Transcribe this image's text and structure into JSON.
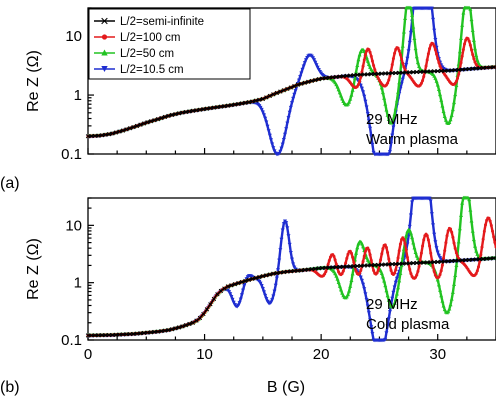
{
  "chart_data": [
    {
      "type": "line",
      "panel_label": "(a)",
      "ylabel": "Re Z (Ω)",
      "xlabel": "",
      "xlim": [
        0,
        35
      ],
      "ylim": [
        0.1,
        30
      ],
      "yscale": "log",
      "x_ticks": [
        0,
        10,
        20,
        30
      ],
      "y_ticks": [
        0.1,
        1,
        10
      ],
      "y_tick_labels": [
        "0.1",
        "1",
        "10"
      ],
      "x_tick_labels": [],
      "annotation": [
        "29 MHz",
        "Warm plasma"
      ],
      "legend": {
        "placement": "top-left",
        "entries": [
          "L/2=semi-infinite",
          "L/2=100 cm",
          "L/2=50 cm",
          "L/2=10.5 cm"
        ]
      },
      "base": [
        [
          0,
          0.2
        ],
        [
          1,
          0.205
        ],
        [
          2,
          0.22
        ],
        [
          3,
          0.25
        ],
        [
          4,
          0.29
        ],
        [
          5,
          0.34
        ],
        [
          6,
          0.39
        ],
        [
          7,
          0.45
        ],
        [
          8,
          0.5
        ],
        [
          9,
          0.54
        ],
        [
          10,
          0.58
        ],
        [
          11,
          0.62
        ],
        [
          12,
          0.66
        ],
        [
          13,
          0.71
        ],
        [
          14,
          0.77
        ],
        [
          15,
          0.86
        ],
        [
          16,
          1.05
        ],
        [
          17,
          1.25
        ],
        [
          18,
          1.5
        ],
        [
          19,
          1.7
        ],
        [
          20,
          1.9
        ],
        [
          21,
          2.0
        ],
        [
          22,
          2.1
        ],
        [
          23,
          2.2
        ],
        [
          24,
          2.25
        ],
        [
          25,
          2.3
        ],
        [
          26,
          2.35
        ],
        [
          27,
          2.4
        ],
        [
          28,
          2.45
        ],
        [
          29,
          2.5
        ],
        [
          30,
          2.55
        ],
        [
          31,
          2.6
        ],
        [
          32,
          2.7
        ],
        [
          33,
          2.8
        ],
        [
          34,
          2.9
        ],
        [
          35,
          3.0
        ]
      ],
      "series": [
        {
          "name": "L/2=semi-infinite",
          "color": "#000000",
          "marker": "x",
          "resonances": []
        },
        {
          "name": "L/2=100 cm",
          "color": "#e41a1c",
          "marker": "circle",
          "resonances": [
            {
              "x0": 24.0,
              "a": 0.45,
              "w": 0.5,
              "dipx": 1.0,
              "dip": 0.22
            },
            {
              "x0": 26.5,
              "a": 0.45,
              "w": 0.5,
              "dipx": 1.0,
              "dip": 0.22
            },
            {
              "x0": 29.5,
              "a": 0.5,
              "w": 0.55,
              "dipx": 1.1,
              "dip": 0.25
            },
            {
              "x0": 32.5,
              "a": 0.55,
              "w": 0.55,
              "dipx": 1.1,
              "dip": 0.25
            }
          ]
        },
        {
          "name": "L/2=50 cm",
          "color": "#22c322",
          "marker": "triangle-up",
          "resonances": [
            {
              "x0": 23.5,
              "a": 0.45,
              "w": 0.6,
              "dipx": 1.3,
              "dip": 0.5
            },
            {
              "x0": 27.5,
              "a": 1.3,
              "w": 0.55,
              "dipx": 1.5,
              "dip": 0.85
            },
            {
              "x0": 32.5,
              "a": 1.3,
              "w": 0.6,
              "dipx": 1.6,
              "dip": 0.9
            }
          ]
        },
        {
          "name": "L/2=10.5 cm",
          "color": "#1f2ed1",
          "marker": "triangle-down",
          "resonances": [
            {
              "x0": 19.0,
              "a": 0.45,
              "w": 0.8,
              "dipx": 2.7,
              "dip": 1.05
            },
            {
              "x0": 28.7,
              "a": 2.4,
              "w": 0.9,
              "dipx": 3.5,
              "dip": 1.9
            }
          ]
        }
      ]
    },
    {
      "type": "line",
      "panel_label": "(b)",
      "ylabel": "Re Z (Ω)",
      "xlabel": "B (G)",
      "xlim": [
        0,
        35
      ],
      "ylim": [
        0.1,
        30
      ],
      "yscale": "log",
      "x_ticks": [
        0,
        10,
        20,
        30
      ],
      "y_ticks": [
        0.1,
        1,
        10
      ],
      "y_tick_labels": [
        "0.1",
        "1",
        "10"
      ],
      "x_tick_labels": [
        "0",
        "10",
        "20",
        "30"
      ],
      "annotation": [
        "29 MHz",
        "Cold plasma"
      ],
      "base": [
        [
          0,
          0.12
        ],
        [
          2,
          0.122
        ],
        [
          4,
          0.128
        ],
        [
          6,
          0.14
        ],
        [
          7,
          0.15
        ],
        [
          8,
          0.17
        ],
        [
          9,
          0.2
        ],
        [
          9.5,
          0.23
        ],
        [
          10,
          0.3
        ],
        [
          10.5,
          0.42
        ],
        [
          11,
          0.6
        ],
        [
          11.5,
          0.75
        ],
        [
          12,
          0.86
        ],
        [
          13,
          1.0
        ],
        [
          14,
          1.15
        ],
        [
          15,
          1.3
        ],
        [
          16,
          1.45
        ],
        [
          17,
          1.55
        ],
        [
          18,
          1.62
        ],
        [
          19,
          1.7
        ],
        [
          20,
          1.8
        ],
        [
          22,
          1.9
        ],
        [
          24,
          2.0
        ],
        [
          26,
          2.1
        ],
        [
          28,
          2.2
        ],
        [
          30,
          2.3
        ],
        [
          32,
          2.45
        ],
        [
          34,
          2.6
        ],
        [
          35,
          2.7
        ]
      ],
      "series": [
        {
          "name": "L/2=semi-infinite",
          "color": "#000000",
          "marker": "x",
          "resonances": []
        },
        {
          "name": "L/2=100 cm",
          "color": "#e41a1c",
          "marker": "circle",
          "resonances": [
            {
              "x0": 21.0,
              "a": 0.3,
              "w": 0.45,
              "dipx": 0.9,
              "dip": 0.15
            },
            {
              "x0": 22.5,
              "a": 0.35,
              "w": 0.45,
              "dipx": 0.9,
              "dip": 0.18
            },
            {
              "x0": 24.0,
              "a": 0.4,
              "w": 0.45,
              "dipx": 0.9,
              "dip": 0.2
            },
            {
              "x0": 25.5,
              "a": 0.45,
              "w": 0.45,
              "dipx": 0.9,
              "dip": 0.22
            },
            {
              "x0": 27.0,
              "a": 0.5,
              "w": 0.45,
              "dipx": 0.9,
              "dip": 0.25
            },
            {
              "x0": 29.0,
              "a": 0.55,
              "w": 0.5,
              "dipx": 1.0,
              "dip": 0.28
            },
            {
              "x0": 31.0,
              "a": 0.6,
              "w": 0.5,
              "dipx": 1.0,
              "dip": 0.3
            },
            {
              "x0": 34.3,
              "a": 0.75,
              "w": 0.6,
              "dipx": 1.1,
              "dip": 0.3
            }
          ]
        },
        {
          "name": "L/2=50 cm",
          "color": "#22c322",
          "marker": "triangle-up",
          "resonances": [
            {
              "x0": 23.3,
              "a": 0.45,
              "w": 0.55,
              "dipx": 1.2,
              "dip": 0.55
            },
            {
              "x0": 27.5,
              "a": 0.6,
              "w": 0.55,
              "dipx": 1.4,
              "dip": 0.75
            },
            {
              "x0": 32.4,
              "a": 1.35,
              "w": 0.6,
              "dipx": 1.6,
              "dip": 0.9
            }
          ]
        },
        {
          "name": "L/2=10.5 cm",
          "color": "#1f2ed1",
          "marker": "triangle-down",
          "resonances": [
            {
              "x0": 13.7,
              "a": 0.1,
              "w": 0.45,
              "dipx": 0.9,
              "dip": 0.4
            },
            {
              "x0": 16.9,
              "a": 0.9,
              "w": 0.5,
              "dipx": 1.3,
              "dip": 0.5
            },
            {
              "x0": 28.6,
              "a": 2.6,
              "w": 0.85,
              "dipx": 3.6,
              "dip": 1.6
            }
          ]
        }
      ]
    }
  ]
}
